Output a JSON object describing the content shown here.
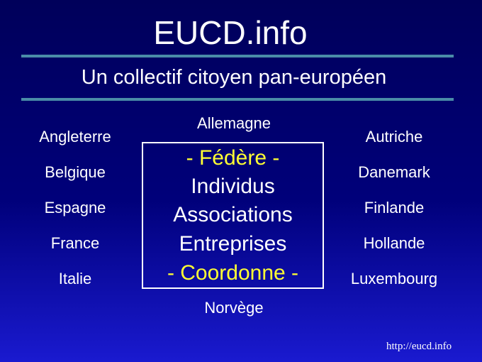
{
  "title": "EUCD.info",
  "subtitle": "Un collectif citoyen pan-européen",
  "countries_left": [
    "Angleterre",
    "Belgique",
    "Espagne",
    "France",
    "Italie"
  ],
  "countries_right": [
    "Autriche",
    "Danemark",
    "Finlande",
    "Hollande",
    "Luxembourg"
  ],
  "country_top": "Allemagne",
  "country_bottom": "Norvège",
  "center_box": {
    "line1": "- Fédère -",
    "line2": "Individus",
    "line3": "Associations",
    "line4": "Entreprises",
    "line5": "- Coordonne -"
  },
  "footer_url": "http://eucd.info",
  "colors": {
    "background_top": "#00005a",
    "background_bottom": "#1a1ad0",
    "rule": "#4a8ca8",
    "highlight": "#ffff33",
    "text": "#ffffff"
  }
}
